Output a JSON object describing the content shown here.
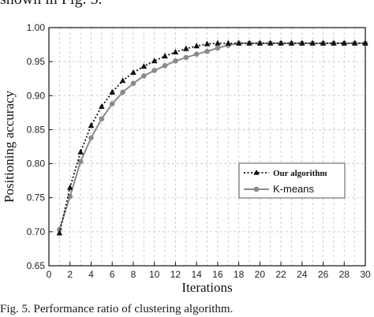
{
  "header_text": "shown in Fig. 5.",
  "caption": "Fig. 5. Performance ratio of clustering algorithm.",
  "chart_data": {
    "type": "line",
    "title": "",
    "xlabel": "Iterations",
    "ylabel": "Positioning accuracy",
    "xlim": [
      0,
      30
    ],
    "ylim": [
      0.65,
      1.0
    ],
    "x_ticks": [
      0,
      2,
      4,
      6,
      8,
      10,
      12,
      14,
      16,
      18,
      20,
      22,
      24,
      26,
      28,
      30
    ],
    "y_ticks": [
      0.65,
      0.7,
      0.75,
      0.8,
      0.85,
      0.9,
      0.95,
      1.0
    ],
    "y_tick_labels": [
      "0.65",
      "0.70",
      "0.75",
      "0.80",
      "0.85",
      "0.90",
      "0.95",
      "1.00"
    ],
    "x_tick_labels": [
      "0",
      "2",
      "4",
      "6",
      "8",
      "10",
      "12",
      "14",
      "16",
      "18",
      "20",
      "22",
      "24",
      "26",
      "28",
      "30"
    ],
    "grid": true,
    "legend_position": "middle-right",
    "series": [
      {
        "name": "Our algorithm",
        "style": "dotted",
        "marker": "triangle",
        "color": "#111111",
        "x": [
          1,
          2,
          3,
          4,
          5,
          6,
          7,
          8,
          9,
          10,
          11,
          12,
          13,
          14,
          15,
          16,
          17,
          18,
          19,
          20,
          21,
          22,
          23,
          24,
          25,
          26,
          27,
          28,
          29,
          30
        ],
        "y": [
          0.698,
          0.765,
          0.817,
          0.856,
          0.884,
          0.905,
          0.922,
          0.934,
          0.943,
          0.951,
          0.958,
          0.964,
          0.969,
          0.973,
          0.976,
          0.977,
          0.977,
          0.977,
          0.977,
          0.977,
          0.977,
          0.977,
          0.977,
          0.977,
          0.977,
          0.977,
          0.977,
          0.977,
          0.977,
          0.977
        ]
      },
      {
        "name": "K-means",
        "style": "solid",
        "marker": "circle",
        "color": "#8a8a8a",
        "x": [
          1,
          2,
          3,
          4,
          5,
          6,
          7,
          8,
          9,
          10,
          11,
          12,
          13,
          14,
          15,
          16,
          17,
          18,
          19,
          20,
          21,
          22,
          23,
          24,
          25,
          26,
          27,
          28,
          29,
          30
        ],
        "y": [
          0.703,
          0.752,
          0.803,
          0.838,
          0.866,
          0.888,
          0.905,
          0.918,
          0.929,
          0.937,
          0.944,
          0.951,
          0.956,
          0.961,
          0.965,
          0.97,
          0.974,
          0.977,
          0.977,
          0.977,
          0.977,
          0.977,
          0.977,
          0.977,
          0.977,
          0.977,
          0.977,
          0.977,
          0.977,
          0.977
        ]
      }
    ]
  }
}
